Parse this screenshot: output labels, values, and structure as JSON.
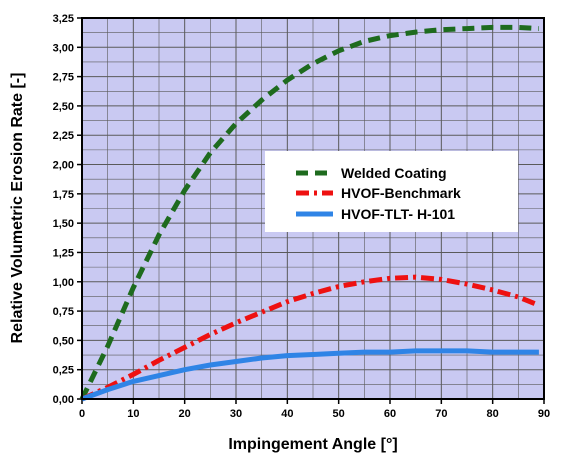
{
  "colors": {
    "plot_background": "#c9c9f2",
    "grid": "#5a5a5a",
    "welded": "#1e6b1e",
    "hvof_benchmark": "#ee1111",
    "hvof_tlt": "#2f84e6"
  },
  "chart_data": {
    "type": "line",
    "xlabel": "Impingement Angle [°]",
    "ylabel": "Relative Volumetric Erosion Rate [-]",
    "xlim": [
      0,
      90
    ],
    "ylim": [
      0,
      3.25
    ],
    "grid": true,
    "legend_position": "center-right",
    "x_ticks": [
      "0",
      "10",
      "20",
      "30",
      "40",
      "50",
      "60",
      "70",
      "80",
      "90"
    ],
    "y_ticks": [
      "0,00",
      "0,25",
      "0,50",
      "0,75",
      "1,00",
      "1,25",
      "1,50",
      "1,75",
      "2,00",
      "2,25",
      "2,50",
      "2,75",
      "3,00",
      "3,25"
    ],
    "series": [
      {
        "name": "Welded Coating",
        "style": "dashed",
        "color": "#1e6b1e",
        "x": [
          0,
          5,
          10,
          15,
          20,
          25,
          30,
          35,
          40,
          45,
          50,
          55,
          60,
          65,
          70,
          75,
          80,
          85,
          89
        ],
        "y": [
          0.0,
          0.45,
          0.95,
          1.4,
          1.78,
          2.1,
          2.35,
          2.55,
          2.72,
          2.86,
          2.97,
          3.05,
          3.1,
          3.13,
          3.15,
          3.16,
          3.17,
          3.17,
          3.16
        ]
      },
      {
        "name": "HVOF-Benchmark",
        "style": "dash-dot",
        "color": "#ee1111",
        "x": [
          0,
          5,
          10,
          15,
          20,
          25,
          30,
          35,
          40,
          45,
          50,
          55,
          60,
          65,
          70,
          75,
          80,
          85,
          89
        ],
        "y": [
          0.0,
          0.1,
          0.21,
          0.33,
          0.44,
          0.55,
          0.65,
          0.74,
          0.83,
          0.9,
          0.96,
          1.0,
          1.03,
          1.04,
          1.02,
          0.98,
          0.93,
          0.87,
          0.8
        ]
      },
      {
        "name": "HVOF-TLT- H-101",
        "style": "solid",
        "color": "#2f84e6",
        "x": [
          0,
          5,
          10,
          15,
          20,
          25,
          30,
          35,
          40,
          45,
          50,
          55,
          60,
          65,
          70,
          75,
          80,
          85,
          89
        ],
        "y": [
          0.0,
          0.08,
          0.15,
          0.2,
          0.25,
          0.29,
          0.32,
          0.35,
          0.37,
          0.38,
          0.39,
          0.4,
          0.4,
          0.41,
          0.41,
          0.41,
          0.4,
          0.4,
          0.4
        ]
      }
    ]
  }
}
